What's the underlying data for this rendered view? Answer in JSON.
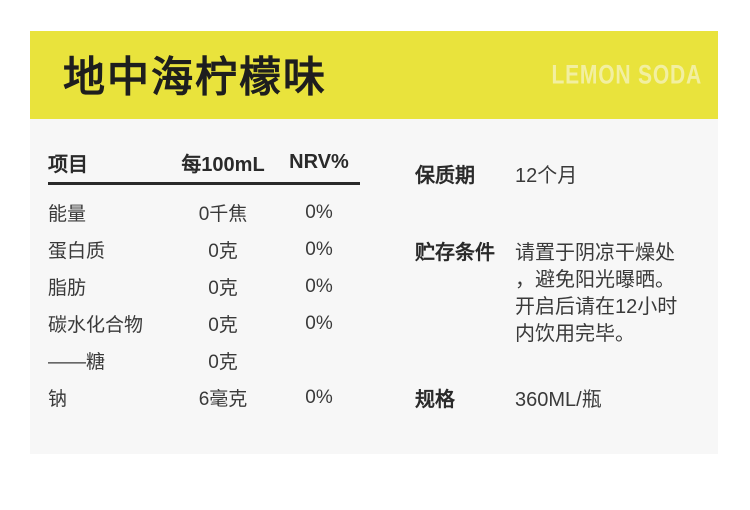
{
  "header": {
    "title": "地中海柠檬味",
    "subtitle": "LEMON SODA"
  },
  "nutrition_table": {
    "columns": [
      "项目",
      "每100mL",
      "NRV%"
    ],
    "rows": [
      {
        "item": "能量",
        "per_100ml": "0千焦",
        "nrv": "0%"
      },
      {
        "item": "蛋白质",
        "per_100ml": "0克",
        "nrv": "0%"
      },
      {
        "item": "脂肪",
        "per_100ml": "0克",
        "nrv": "0%"
      },
      {
        "item": "碳水化合物",
        "per_100ml": "0克",
        "nrv": "0%"
      },
      {
        "item": "——糖",
        "per_100ml": "0克",
        "nrv": ""
      },
      {
        "item": "钠",
        "per_100ml": "6毫克",
        "nrv": "0%"
      }
    ]
  },
  "product_info": [
    {
      "label": "保质期",
      "value": "12个月"
    },
    {
      "label": "贮存条件",
      "value": "请置于阴凉干燥处\n，避免阳光曝晒。\n开启后请在12小时\n内饮用完毕。"
    },
    {
      "label": "规格",
      "value": "360ML/瓶"
    }
  ],
  "colors": {
    "banner_yellow": "#E9E33C",
    "subtitle_pale_yellow": "#F2EFA0",
    "panel_grey": "#F7F7F7",
    "title_black": "#1E1E1E",
    "text_dark": "#2A2A2A",
    "text_body": "#3A3A3A"
  }
}
